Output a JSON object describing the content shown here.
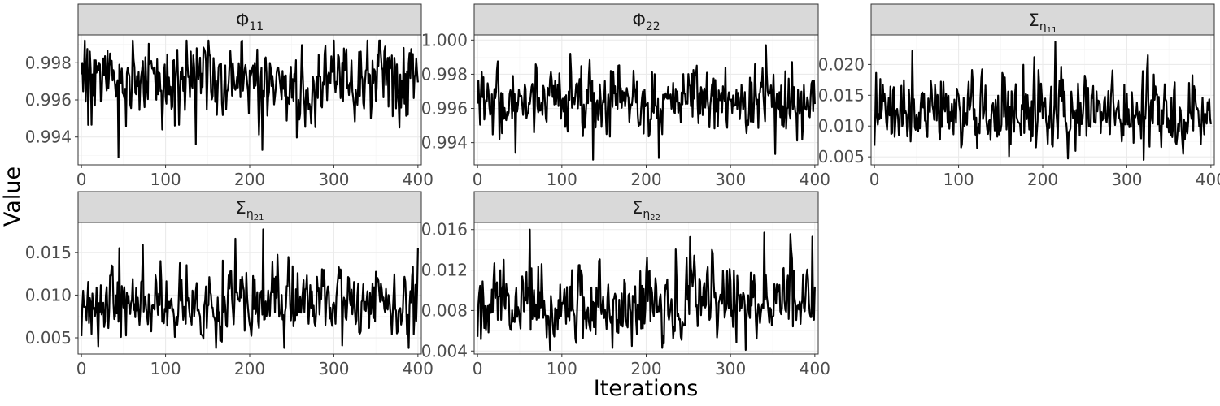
{
  "chart_data": [
    {
      "type": "line",
      "title": "Φ",
      "title_sub": "11",
      "title_sub2": "",
      "xlim": [
        -4,
        404
      ],
      "ylim": [
        0.9925,
        0.9995
      ],
      "xticks": [
        0,
        100,
        200,
        300,
        400
      ],
      "xtick_labels": [
        "0",
        "100",
        "200",
        "300",
        "400"
      ],
      "yticks": [
        0.994,
        0.996,
        0.998
      ],
      "ytick_labels": [
        "0.994",
        "0.996",
        "0.998"
      ],
      "series": [
        {
          "x": [
            0,
            400
          ],
          "mean": 0.9972,
          "sd": 0.0009,
          "min": 0.9929,
          "max": 0.9992,
          "spikes": [
            [
              44,
              0.9929
            ],
            [
              136,
              0.9936
            ],
            [
              215,
              0.9933
            ],
            [
              125,
              0.9992
            ],
            [
              300,
              0.9992
            ],
            [
              340,
              0.9992
            ]
          ],
          "seed": 11,
          "ar": 0.15,
          "skew": -1
        }
      ]
    },
    {
      "type": "line",
      "title": "Φ",
      "title_sub": "22",
      "title_sub2": "",
      "xlim": [
        -4,
        404
      ],
      "ylim": [
        0.9927,
        1.0003
      ],
      "xticks": [
        0,
        100,
        200,
        300,
        400
      ],
      "xtick_labels": [
        "0",
        "100",
        "200",
        "300",
        "400"
      ],
      "yticks": [
        0.994,
        0.996,
        0.998,
        1.0
      ],
      "ytick_labels": [
        "0.994",
        "0.996",
        "0.998",
        "1.000"
      ],
      "series": [
        {
          "x": [
            0,
            400
          ],
          "mean": 0.9965,
          "sd": 0.0009,
          "min": 0.993,
          "max": 0.9997,
          "spikes": [
            [
              45,
              0.9934
            ],
            [
              137,
              0.993
            ],
            [
              215,
              0.9931
            ],
            [
              342,
              0.9997
            ],
            [
              110,
              0.9992
            ]
          ],
          "seed": 22,
          "ar": 0.15,
          "skew": 0
        }
      ]
    },
    {
      "type": "line",
      "title": "Σ",
      "title_sub": "η",
      "title_sub2": "11",
      "xlim": [
        -4,
        404
      ],
      "ylim": [
        0.0037,
        0.0248
      ],
      "xticks": [
        0,
        100,
        200,
        300,
        400
      ],
      "xtick_labels": [
        "0",
        "100",
        "200",
        "300",
        "400"
      ],
      "yticks": [
        0.005,
        0.01,
        0.015,
        0.02
      ],
      "ytick_labels": [
        "0.005",
        "0.010",
        "0.015",
        "0.020"
      ],
      "series": [
        {
          "x": [
            0,
            400
          ],
          "mean": 0.0115,
          "sd": 0.0025,
          "min": 0.0045,
          "max": 0.0237,
          "spikes": [
            [
              0,
              0.0068
            ],
            [
              45,
              0.0222
            ],
            [
              215,
              0.0237
            ],
            [
              190,
              0.0212
            ],
            [
              325,
              0.0215
            ],
            [
              320,
              0.0045
            ],
            [
              160,
              0.0051
            ]
          ],
          "seed": 33,
          "ar": 0.25,
          "skew": 1
        }
      ]
    },
    {
      "type": "line",
      "title": "Σ",
      "title_sub": "η",
      "title_sub2": "21",
      "xlim": [
        -4,
        404
      ],
      "ylim": [
        0.0031,
        0.0185
      ],
      "xticks": [
        0,
        100,
        200,
        300,
        400
      ],
      "xtick_labels": [
        "0",
        "100",
        "200",
        "300",
        "400"
      ],
      "yticks": [
        0.005,
        0.01,
        0.015
      ],
      "ytick_labels": [
        "0.005",
        "0.010",
        "0.015"
      ],
      "series": [
        {
          "x": [
            0,
            400
          ],
          "mean": 0.0089,
          "sd": 0.0019,
          "min": 0.0038,
          "max": 0.0177,
          "spikes": [
            [
              0,
              0.0052
            ],
            [
              216,
              0.0177
            ],
            [
              183,
              0.0166
            ],
            [
              45,
              0.0155
            ],
            [
              160,
              0.0038
            ],
            [
              310,
              0.0041
            ]
          ],
          "seed": 44,
          "ar": 0.3,
          "skew": 1
        }
      ]
    },
    {
      "type": "line",
      "title": "Σ",
      "title_sub": "η",
      "title_sub2": "22",
      "xlim": [
        -4,
        404
      ],
      "ylim": [
        0.0037,
        0.0167
      ],
      "xticks": [
        0,
        100,
        200,
        300,
        400
      ],
      "xtick_labels": [
        "0",
        "100",
        "200",
        "300",
        "400"
      ],
      "yticks": [
        0.004,
        0.008,
        0.012,
        0.016
      ],
      "ytick_labels": [
        "0.004",
        "0.008",
        "0.012",
        "0.016"
      ],
      "series": [
        {
          "x": [
            0,
            400
          ],
          "mean": 0.0087,
          "sd": 0.0018,
          "min": 0.0041,
          "max": 0.016,
          "spikes": [
            [
              0,
              0.0054
            ],
            [
              62,
              0.016
            ],
            [
              318,
              0.0041
            ],
            [
              160,
              0.0043
            ],
            [
              340,
              0.0157
            ],
            [
              397,
              0.0153
            ]
          ],
          "seed": 55,
          "ar": 0.3,
          "skew": 1
        }
      ]
    }
  ],
  "axis_titles": {
    "x": "Iterations",
    "y": "Value"
  }
}
